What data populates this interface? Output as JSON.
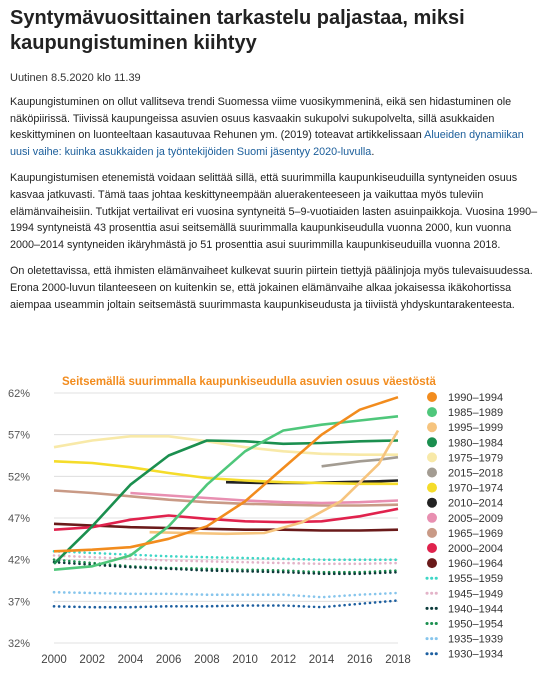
{
  "article": {
    "title": "Syntymävuosittainen tarkastelu paljastaa, miksi kaupungistuminen kiihtyy",
    "meta": "Uutinen 8.5.2020 klo 11.39",
    "p1_text": "Kaupungistuminen on ollut vallitseva trendi Suomessa viime vuosikymmeninä, eikä sen hidastuminen ole näköpiirissä. Tiivissä kaupungeissa asuvien osuus kasvaakin sukupolvi sukupolvelta, sillä asukkaiden keskittyminen on luonteeltaan kasautuvaa Rehunen ym. (2019) toteavat artikkelissaan ",
    "p1_link": "Alueiden dynamiikan uusi vaihe: kuinka asukkaiden ja työntekijöiden Suomi jäsentyy 2020-luvulla",
    "p1_end": ".",
    "p2": "Kaupungistumisen etenemistä voidaan selittää sillä, että suurimmilla kaupunkiseuduilla syntyneiden osuus kasvaa jatkuvasti. Tämä taas johtaa keskittyneempään aluerakenteeseen ja vaikuttaa myös tuleviin elämänvaiheisiin. Tutkijat vertailivat eri vuosina syntyneitä 5–9-vuotiaiden lasten asuinpaikkoja. Vuosina 1990–1994 syntyneistä 43 prosenttia asui seitsemällä suurimmalla kaupunkiseudulla vuonna 2000, kun vuonna 2000–2014 syntyneiden ikäryhmästä jo 51 prosenttia asui suurimmilla kaupunkiseuduilla vuonna 2018.",
    "p3": "On oletettavissa, että ihmisten elämänvaiheet kulkevat suurin piirtein tiettyjä päälinjoja myös tulevaisuudessa. Erona 2000-luvun tilanteeseen on kuitenkin se, että jokainen elämänvaihe alkaa jokaisessa ikäkohortissa aiempaa useammin joltain seitsemästä suurimmasta kaupunkiseudusta ja tiiviistä yhdyskuntarakenteesta."
  },
  "chart_data": {
    "type": "line",
    "title": "Seitsemällä suurimmalla kaupunkiseudulla asuvien osuus väestöstä",
    "xlabel": "",
    "ylabel": "",
    "xlim": [
      2000,
      2018
    ],
    "ylim": [
      32,
      62
    ],
    "x_ticks": [
      "2000",
      "2002",
      "2004",
      "2006",
      "2008",
      "2010",
      "2012",
      "2014",
      "2016",
      "2018"
    ],
    "y_ticks": [
      "62%",
      "57%",
      "52%",
      "47%",
      "42%",
      "37%",
      "32%"
    ],
    "grid": "horizontal",
    "legend": "right",
    "series": [
      {
        "name": "1990–1994",
        "color": "#f28c1e",
        "style": "solid",
        "points": [
          [
            2000,
            43
          ],
          [
            2002,
            43.2
          ],
          [
            2004,
            43.5
          ],
          [
            2006,
            44.5
          ],
          [
            2008,
            46
          ],
          [
            2010,
            49
          ],
          [
            2012,
            53
          ],
          [
            2014,
            57
          ],
          [
            2016,
            60
          ],
          [
            2018,
            61.5
          ]
        ]
      },
      {
        "name": "1985–1989",
        "color": "#4fc77b",
        "style": "solid",
        "points": [
          [
            2000,
            40.8
          ],
          [
            2002,
            41.2
          ],
          [
            2004,
            42.5
          ],
          [
            2006,
            46
          ],
          [
            2008,
            51
          ],
          [
            2010,
            55
          ],
          [
            2012,
            57.5
          ],
          [
            2014,
            58.2
          ],
          [
            2016,
            58.7
          ],
          [
            2018,
            59.2
          ]
        ]
      },
      {
        "name": "1995–1999",
        "color": "#f6c47e",
        "style": "solid",
        "points": [
          [
            2005,
            45.3
          ],
          [
            2007,
            45.2
          ],
          [
            2009,
            45.1
          ],
          [
            2011,
            45.2
          ],
          [
            2013,
            46.5
          ],
          [
            2015,
            49
          ],
          [
            2017,
            53.5
          ],
          [
            2018,
            57.5
          ]
        ]
      },
      {
        "name": "1980–1984",
        "color": "#1b8f4f",
        "style": "solid",
        "points": [
          [
            2000,
            41.5
          ],
          [
            2002,
            46
          ],
          [
            2004,
            51
          ],
          [
            2006,
            54.5
          ],
          [
            2008,
            56.3
          ],
          [
            2010,
            56.2
          ],
          [
            2012,
            55.9
          ],
          [
            2014,
            56
          ],
          [
            2016,
            56.2
          ],
          [
            2018,
            56.3
          ]
        ]
      },
      {
        "name": "1975–1979",
        "color": "#f8e9a8",
        "style": "solid",
        "points": [
          [
            2000,
            55.5
          ],
          [
            2002,
            56.3
          ],
          [
            2004,
            56.8
          ],
          [
            2006,
            56.8
          ],
          [
            2008,
            56.2
          ],
          [
            2010,
            55.5
          ],
          [
            2012,
            55
          ],
          [
            2014,
            54.7
          ],
          [
            2016,
            54.6
          ],
          [
            2018,
            54.6
          ]
        ]
      },
      {
        "name": "2015–2018",
        "color": "#a39c92",
        "style": "solid",
        "points": [
          [
            2014,
            53.2
          ],
          [
            2015,
            53.5
          ],
          [
            2016,
            53.8
          ],
          [
            2017,
            54
          ],
          [
            2018,
            54.3
          ]
        ]
      },
      {
        "name": "1970–1974",
        "color": "#f5dc2a",
        "style": "solid",
        "points": [
          [
            2000,
            53.8
          ],
          [
            2002,
            53.6
          ],
          [
            2004,
            53.1
          ],
          [
            2006,
            52.4
          ],
          [
            2008,
            51.8
          ],
          [
            2010,
            51.5
          ],
          [
            2012,
            51.3
          ],
          [
            2014,
            51.2
          ],
          [
            2016,
            51.1
          ],
          [
            2018,
            51.1
          ]
        ]
      },
      {
        "name": "2010–2014",
        "color": "#222222",
        "style": "solid",
        "points": [
          [
            2009,
            51.3
          ],
          [
            2011,
            51.2
          ],
          [
            2013,
            51.2
          ],
          [
            2015,
            51.3
          ],
          [
            2017,
            51.4
          ],
          [
            2018,
            51.5
          ]
        ]
      },
      {
        "name": "2005–2009",
        "color": "#e88fb1",
        "style": "solid",
        "points": [
          [
            2004,
            50
          ],
          [
            2006,
            49.7
          ],
          [
            2008,
            49.4
          ],
          [
            2010,
            49.1
          ],
          [
            2012,
            48.9
          ],
          [
            2014,
            48.8
          ],
          [
            2016,
            48.9
          ],
          [
            2018,
            49.1
          ]
        ]
      },
      {
        "name": "1965–1969",
        "color": "#c99a86",
        "style": "solid",
        "points": [
          [
            2000,
            50.3
          ],
          [
            2002,
            50
          ],
          [
            2004,
            49.6
          ],
          [
            2006,
            49.2
          ],
          [
            2008,
            48.9
          ],
          [
            2010,
            48.7
          ],
          [
            2012,
            48.6
          ],
          [
            2014,
            48.5
          ],
          [
            2016,
            48.5
          ],
          [
            2018,
            48.6
          ]
        ]
      },
      {
        "name": "2000–2004",
        "color": "#e0224d",
        "style": "solid",
        "points": [
          [
            2000,
            45.6
          ],
          [
            2002,
            45.9
          ],
          [
            2004,
            46.8
          ],
          [
            2006,
            47.3
          ],
          [
            2008,
            46.9
          ],
          [
            2010,
            46.6
          ],
          [
            2012,
            46.5
          ],
          [
            2014,
            46.6
          ],
          [
            2016,
            47.2
          ],
          [
            2018,
            48.1
          ]
        ]
      },
      {
        "name": "1960–1964",
        "color": "#6a1a1a",
        "style": "solid",
        "points": [
          [
            2000,
            46.3
          ],
          [
            2002,
            46.1
          ],
          [
            2004,
            45.9
          ],
          [
            2006,
            45.8
          ],
          [
            2008,
            45.7
          ],
          [
            2010,
            45.6
          ],
          [
            2012,
            45.6
          ],
          [
            2014,
            45.5
          ],
          [
            2016,
            45.5
          ],
          [
            2018,
            45.6
          ]
        ]
      },
      {
        "name": "1955–1959",
        "color": "#3ed6c6",
        "style": "dotted",
        "points": [
          [
            2000,
            43
          ],
          [
            2002,
            42.8
          ],
          [
            2004,
            42.6
          ],
          [
            2006,
            42.4
          ],
          [
            2008,
            42.3
          ],
          [
            2010,
            42.2
          ],
          [
            2012,
            42.1
          ],
          [
            2014,
            42
          ],
          [
            2016,
            42
          ],
          [
            2018,
            42
          ]
        ]
      },
      {
        "name": "1945–1949",
        "color": "#e3b3c8",
        "style": "dotted",
        "points": [
          [
            2000,
            42.5
          ],
          [
            2002,
            42.3
          ],
          [
            2004,
            42.1
          ],
          [
            2006,
            41.9
          ],
          [
            2008,
            41.8
          ],
          [
            2010,
            41.7
          ],
          [
            2012,
            41.6
          ],
          [
            2014,
            41.5
          ],
          [
            2016,
            41.5
          ],
          [
            2018,
            41.6
          ]
        ]
      },
      {
        "name": "1940–1944",
        "color": "#0c3b3b",
        "style": "dotted",
        "points": [
          [
            2000,
            41.7
          ],
          [
            2002,
            41.4
          ],
          [
            2004,
            41.1
          ],
          [
            2006,
            40.9
          ],
          [
            2008,
            40.7
          ],
          [
            2010,
            40.6
          ],
          [
            2012,
            40.5
          ],
          [
            2014,
            40.3
          ],
          [
            2016,
            40.3
          ],
          [
            2018,
            40.5
          ]
        ]
      },
      {
        "name": "1950–1954",
        "color": "#1b8f4f",
        "style": "dotted",
        "points": [
          [
            2000,
            42
          ],
          [
            2002,
            41.6
          ],
          [
            2004,
            41.2
          ],
          [
            2006,
            41
          ],
          [
            2008,
            40.9
          ],
          [
            2010,
            40.8
          ],
          [
            2012,
            40.7
          ],
          [
            2014,
            40.5
          ],
          [
            2016,
            40.5
          ],
          [
            2018,
            40.7
          ]
        ]
      },
      {
        "name": "1935–1939",
        "color": "#86c5ec",
        "style": "dotted",
        "points": [
          [
            2000,
            38.1
          ],
          [
            2002,
            38
          ],
          [
            2004,
            37.9
          ],
          [
            2006,
            37.9
          ],
          [
            2008,
            37.8
          ],
          [
            2010,
            37.8
          ],
          [
            2012,
            37.8
          ],
          [
            2014,
            37.5
          ],
          [
            2016,
            37.8
          ],
          [
            2018,
            38
          ]
        ]
      },
      {
        "name": "1930–1934",
        "color": "#1d5fa0",
        "style": "dotted",
        "points": [
          [
            2000,
            36.4
          ],
          [
            2002,
            36.3
          ],
          [
            2004,
            36.3
          ],
          [
            2006,
            36.4
          ],
          [
            2008,
            36.4
          ],
          [
            2010,
            36.5
          ],
          [
            2012,
            36.5
          ],
          [
            2014,
            36.3
          ],
          [
            2016,
            36.7
          ],
          [
            2018,
            37.1
          ]
        ]
      }
    ]
  }
}
